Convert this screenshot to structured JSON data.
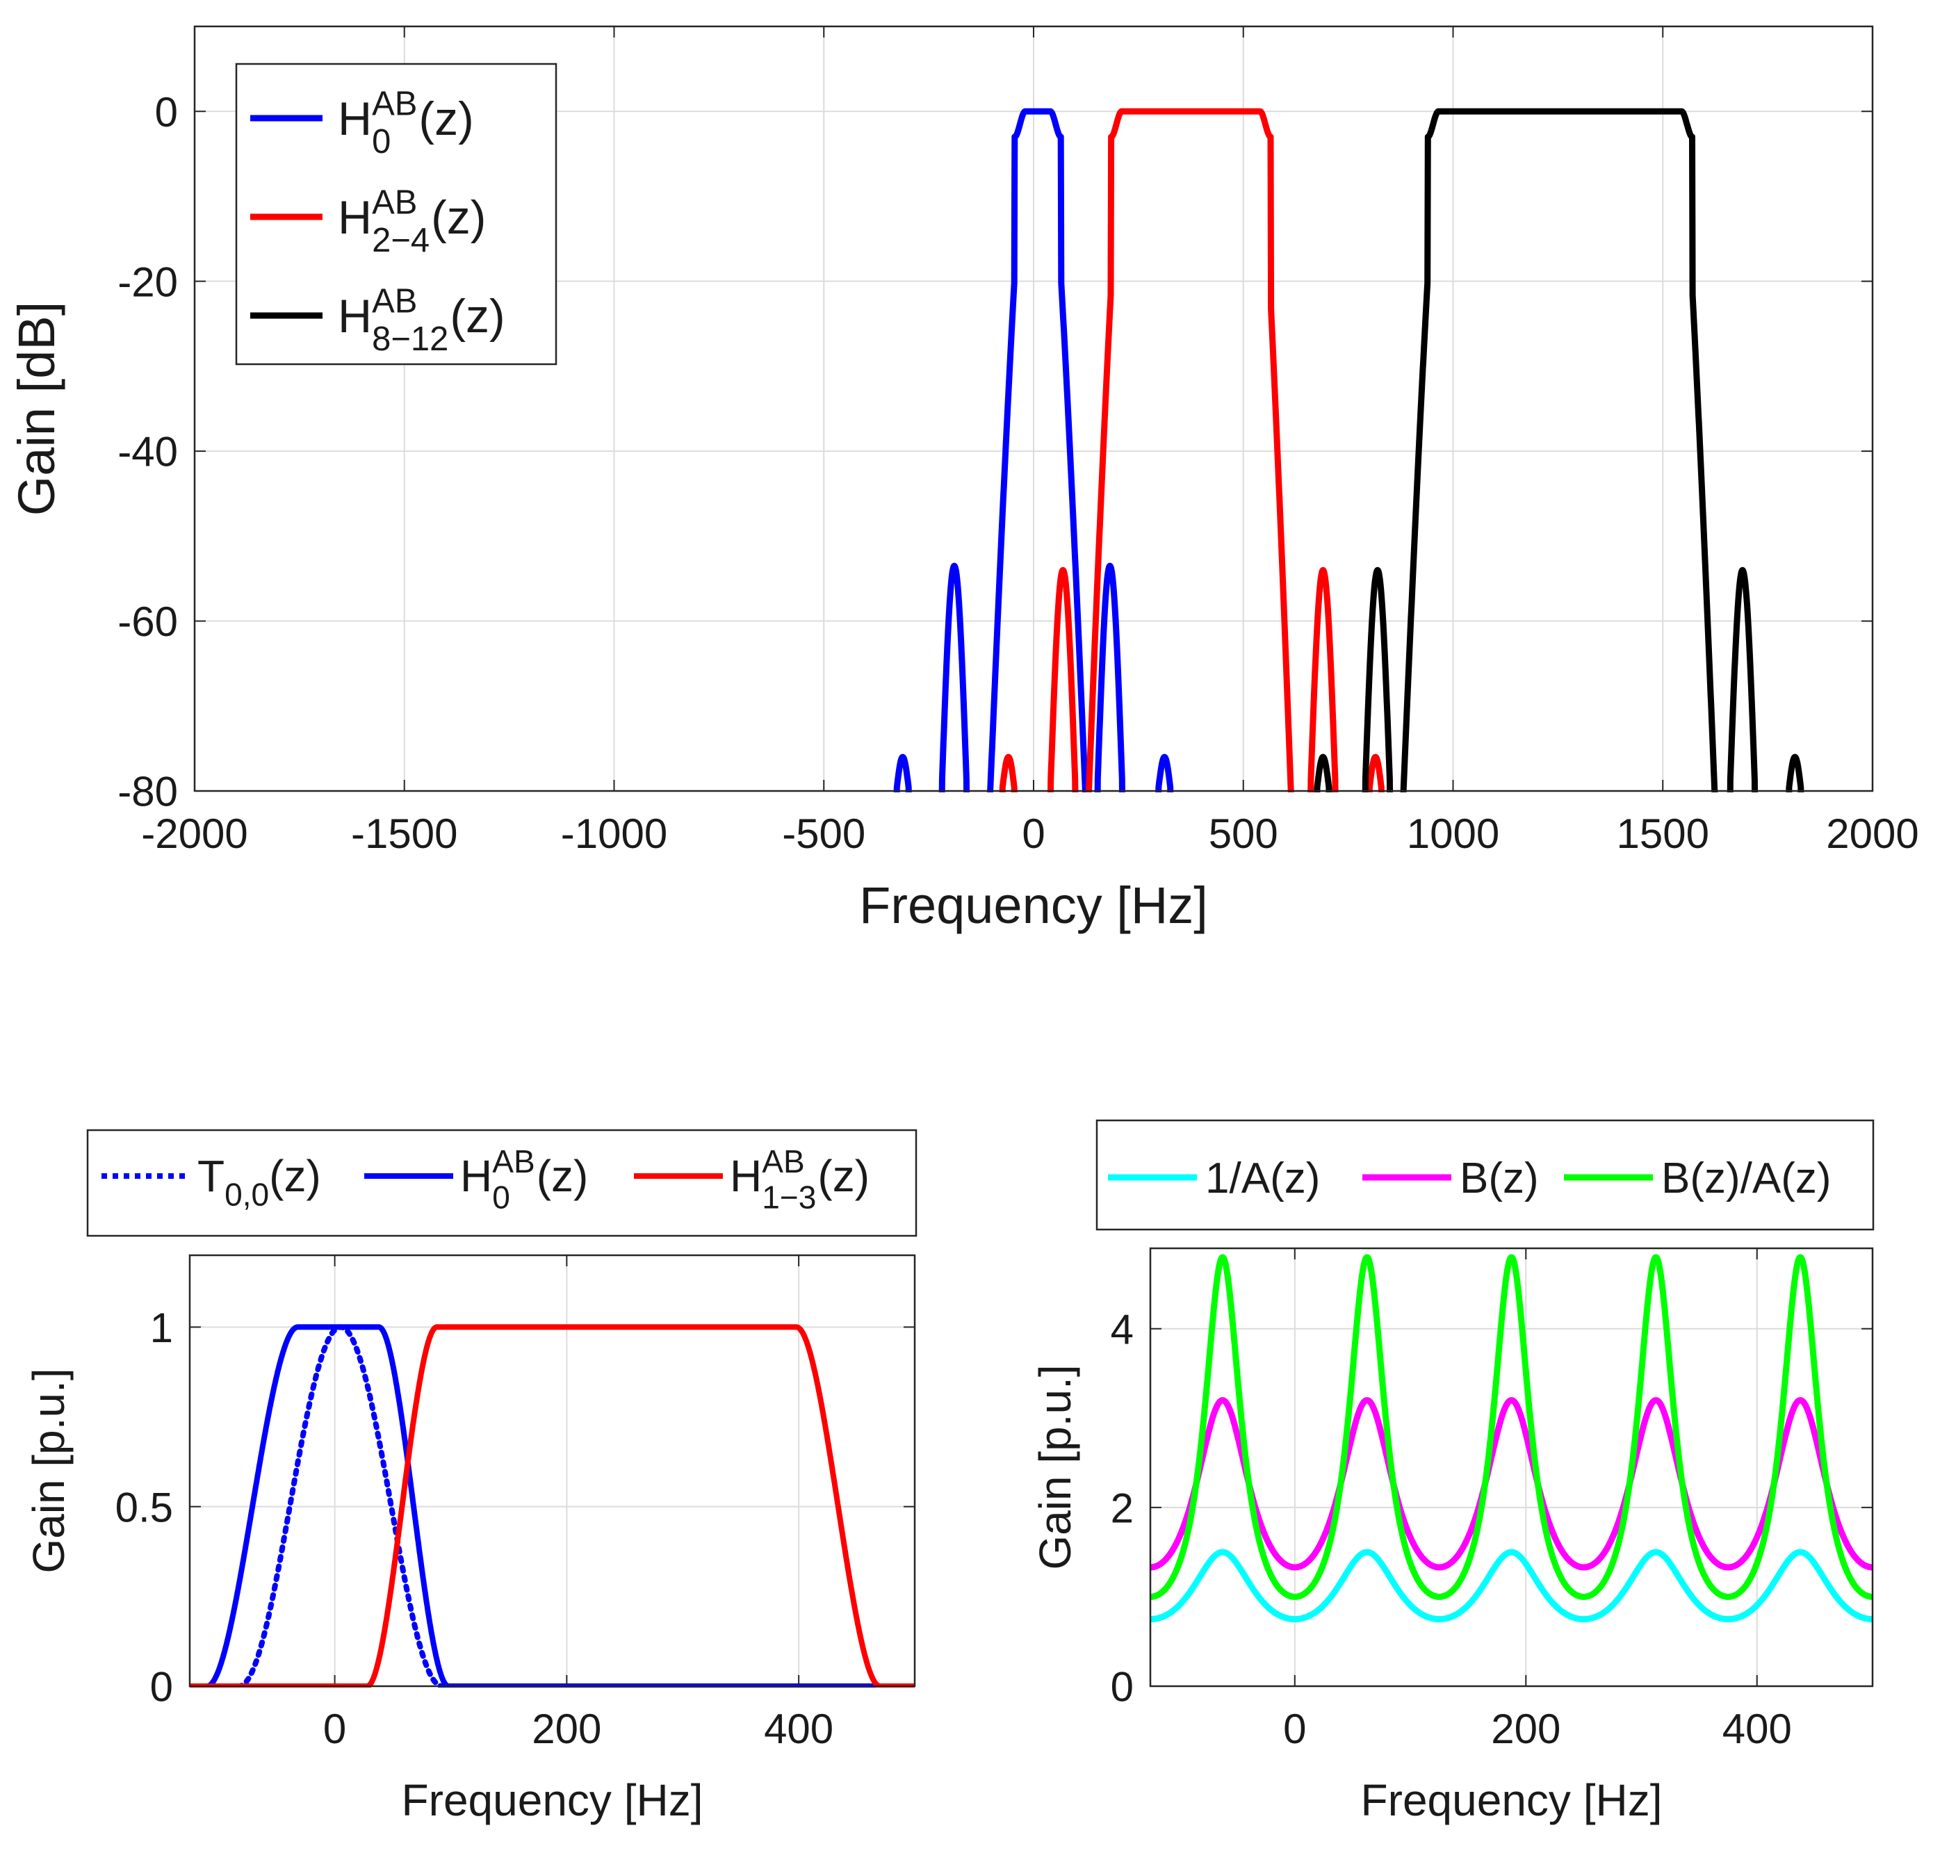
{
  "chart_data": [
    {
      "type": "line",
      "xlabel": "Frequency [Hz]",
      "ylabel": "Gain [dB]",
      "xlim": [
        -2000,
        2000
      ],
      "ylim": [
        -80,
        10
      ],
      "xticks": [
        "-2000",
        "-1500",
        "-1000",
        "-500",
        "0",
        "500",
        "1000",
        "1500",
        "2000"
      ],
      "yticks": [
        "0",
        "-20",
        "-40",
        "-60",
        "-80"
      ],
      "grid": true,
      "legend_position": "top-left",
      "series": [
        {
          "name": "H0AB(z)",
          "label": {
            "base": "H",
            "sup": "AB",
            "sub": "0",
            "tail": "(z)"
          },
          "color": "#0000ff",
          "passband": [
            -20,
            40
          ],
          "transition_band": [
            -105,
            125
          ],
          "sidelobes": [
            -189,
            182
          ],
          "minor_lobes": [
            -312,
            312
          ],
          "peak_sidelobe_db": -53.5,
          "floor_db": -80
        },
        {
          "name": "H2-4AB(z)",
          "label": {
            "base": "H",
            "sup": "AB",
            "sub": "2−4",
            "tail": "(z)"
          },
          "color": "#ff0000",
          "passband": [
            210,
            540
          ],
          "transition_band": [
            130,
            615
          ],
          "sidelobes": [
            70,
            690
          ],
          "minor_lobes": [
            -60,
            815
          ],
          "peak_sidelobe_db": -54,
          "floor_db": -80
        },
        {
          "name": "H8-12AB(z)",
          "label": {
            "base": "H",
            "sup": "AB",
            "sub": "8−12",
            "tail": "(z)"
          },
          "color": "#000000",
          "passband": [
            965,
            1545
          ],
          "transition_band": [
            880,
            1625
          ],
          "sidelobes": [
            820,
            1690
          ],
          "minor_lobes": [
            690,
            1815
          ],
          "peak_sidelobe_db": -54,
          "floor_db": -80
        }
      ]
    },
    {
      "type": "line",
      "xlabel": "Frequency [Hz]",
      "ylabel": "Gain [p.u.]",
      "xlim": [
        -125,
        500
      ],
      "ylim": [
        0,
        1.2
      ],
      "xticks": [
        "0",
        "200",
        "400"
      ],
      "yticks": [
        "0",
        "0.5",
        "1"
      ],
      "grid": true,
      "legend_position": "top-outside",
      "series": [
        {
          "name": "T0,0(z)",
          "label": {
            "base": "T",
            "sub": "0,0",
            "tail": "(z)"
          },
          "color": "#0000ff",
          "style": "dotted",
          "center": 5,
          "support": [
            -85,
            90
          ],
          "peak": 1
        },
        {
          "name": "H0AB(z)",
          "label": {
            "base": "H",
            "sup": "AB",
            "sub": "0",
            "tail": "(z)"
          },
          "color": "#0000ff",
          "style": "solid",
          "flat_top": [
            -32,
            38
          ],
          "rise": [
            -110,
            -32
          ],
          "fall": [
            38,
            98
          ],
          "peak": 1
        },
        {
          "name": "H1-3AB(z)",
          "label": {
            "base": "H",
            "sup": "AB",
            "sub": "1−3",
            "tail": "(z)"
          },
          "color": "#ff0000",
          "style": "solid",
          "flat_top": [
            88,
            398
          ],
          "rise": [
            28,
            88
          ],
          "fall": [
            398,
            470
          ],
          "peak": 1
        }
      ]
    },
    {
      "type": "line",
      "xlabel": "Frequency [Hz]",
      "ylabel": "Gain [p.u.]",
      "xlim": [
        -125,
        500
      ],
      "ylim": [
        0,
        4.9
      ],
      "xticks": [
        "0",
        "200",
        "400"
      ],
      "yticks": [
        "0",
        "2",
        "4"
      ],
      "grid": true,
      "legend_position": "top-outside",
      "period_hz": 125,
      "peaks_at_hz": [
        -62.5,
        62.5,
        187.5,
        312.5,
        437.5
      ],
      "series": [
        {
          "name": "1/A(z)",
          "label": {
            "base": "1/A",
            "tail": "(z)"
          },
          "color": "#00ffff",
          "min": 0.75,
          "max": 1.5
        },
        {
          "name": "B(z)",
          "label": {
            "base": "B",
            "tail": "(z)"
          },
          "color": "#ff00ff",
          "min": 1.33,
          "max": 3.2
        },
        {
          "name": "B(z)/A(z)",
          "label": {
            "base": "B(z)/A",
            "tail": "(z)"
          },
          "color": "#00ff00",
          "min": 1.0,
          "max": 4.8
        }
      ]
    }
  ]
}
